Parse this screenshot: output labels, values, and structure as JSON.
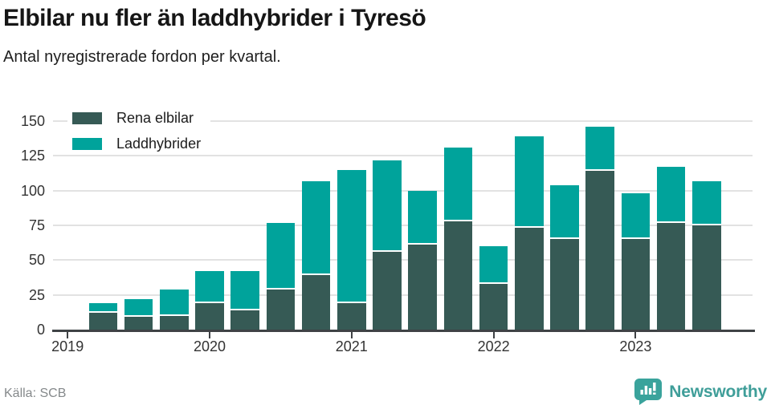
{
  "header": {
    "title": "Elbilar nu fler än laddhybrider i Tyresö",
    "subtitle": "Antal nyregistrerade fordon per kvartal."
  },
  "legend": {
    "items": [
      {
        "label": "Rena elbilar",
        "color": "#365a55"
      },
      {
        "label": "Laddhybrider",
        "color": "#00a39b"
      }
    ]
  },
  "chart_data": {
    "type": "bar",
    "stacked": true,
    "title": "Elbilar nu fler än laddhybrider i Tyresö",
    "subtitle": "Antal nyregistrerade fordon per kvartal.",
    "xlabel": "",
    "ylabel": "",
    "ylim": [
      0,
      150
    ],
    "yticks": [
      0,
      25,
      50,
      75,
      100,
      125,
      150
    ],
    "grid": true,
    "legend_position": "top-left",
    "categories": [
      "2019 Q1",
      "2019 Q2",
      "2019 Q3",
      "2019 Q4",
      "2020 Q1",
      "2020 Q2",
      "2020 Q3",
      "2020 Q4",
      "2021 Q1",
      "2021 Q2",
      "2021 Q3",
      "2021 Q4",
      "2022 Q1",
      "2022 Q2",
      "2022 Q3",
      "2022 Q4",
      "2023 Q1",
      "2023 Q2",
      "2023 Q3"
    ],
    "series": [
      {
        "name": "Rena elbilar",
        "color": "#365a55",
        "values": [
          0,
          12,
          9,
          10,
          19,
          14,
          29,
          39,
          19,
          56,
          61,
          78,
          33,
          73,
          65,
          114,
          65,
          77,
          75
        ]
      },
      {
        "name": "Laddhybrider",
        "color": "#00a39b",
        "values": [
          0,
          7,
          13,
          19,
          23,
          28,
          48,
          68,
          96,
          66,
          39,
          53,
          27,
          66,
          39,
          32,
          33,
          40,
          32
        ]
      }
    ],
    "x_year_ticks": [
      {
        "label": "2019",
        "category_index": 0
      },
      {
        "label": "2020",
        "category_index": 4
      },
      {
        "label": "2021",
        "category_index": 8
      },
      {
        "label": "2022",
        "category_index": 12
      },
      {
        "label": "2023",
        "category_index": 16
      }
    ]
  },
  "footer": {
    "source": "Källa: SCB",
    "brand": "Newsworthy",
    "brand_icon": "newsworthy-speech-bubble-bar-chart-icon"
  },
  "colors": {
    "rena_elbilar": "#365a55",
    "laddhybrider": "#00a39b",
    "gridline": "#e2e2e2",
    "axis": "#3f4245",
    "brand_teal": "#3f9e99",
    "background": "#ffffff"
  }
}
